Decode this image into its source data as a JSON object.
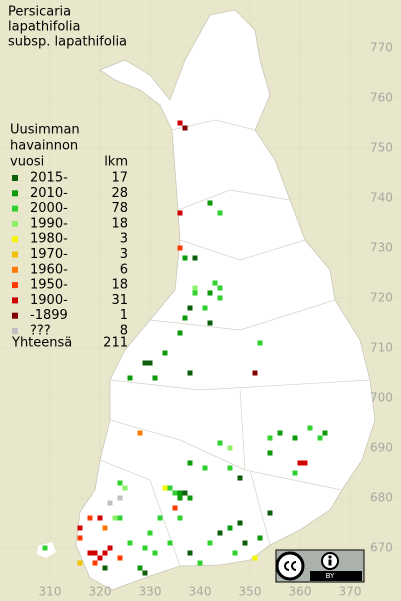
{
  "title": [
    "Persicaria",
    "lapathifolia",
    "subsp. lapathifolia"
  ],
  "legend": {
    "heading": [
      "Uusimman",
      "havainnon",
      "vuosi"
    ],
    "count_heading": "lkm",
    "items": [
      {
        "label": "2015-",
        "count": 17,
        "color": "#0b5e0b"
      },
      {
        "label": "2010-",
        "count": 28,
        "color": "#0a9a0a"
      },
      {
        "label": "2000-",
        "count": 78,
        "color": "#2ed12e"
      },
      {
        "label": "1990-",
        "count": 18,
        "color": "#8cf06a"
      },
      {
        "label": "1980-",
        "count": 3,
        "color": "#f5f500"
      },
      {
        "label": "1970-",
        "count": 3,
        "color": "#f0c000"
      },
      {
        "label": "1960-",
        "count": 6,
        "color": "#ff7a00"
      },
      {
        "label": "1950-",
        "count": 18,
        "color": "#ff3a00"
      },
      {
        "label": "1900-",
        "count": 31,
        "color": "#d00000"
      },
      {
        "label": "-1899",
        "count": 1,
        "color": "#800000"
      },
      {
        "label": "???",
        "count": 8,
        "color": "#c0c0c0"
      }
    ],
    "total_label": "Yhteensä",
    "total": 211
  },
  "x_axis": [
    310,
    320,
    330,
    340,
    350,
    360,
    370
  ],
  "y_axis": [
    670,
    680,
    690,
    700,
    710,
    720,
    730,
    740,
    750,
    760,
    770
  ],
  "license": "BY",
  "records": [
    [
      336,
      755,
      8
    ],
    [
      337,
      754,
      9
    ],
    [
      342,
      739,
      1
    ],
    [
      344,
      737,
      2
    ],
    [
      336,
      737,
      8
    ],
    [
      336,
      730,
      7
    ],
    [
      337,
      728,
      1
    ],
    [
      339,
      728,
      0
    ],
    [
      343,
      723,
      2
    ],
    [
      342,
      721,
      1
    ],
    [
      339,
      722,
      3
    ],
    [
      339,
      721,
      2
    ],
    [
      344,
      722,
      2
    ],
    [
      344,
      720,
      2
    ],
    [
      341,
      718,
      2
    ],
    [
      342,
      715,
      0
    ],
    [
      338,
      718,
      0
    ],
    [
      337,
      716,
      1
    ],
    [
      336,
      713,
      1
    ],
    [
      352,
      711,
      2
    ],
    [
      329,
      707,
      0
    ],
    [
      330,
      707,
      0
    ],
    [
      333,
      709,
      1
    ],
    [
      351,
      705,
      9
    ],
    [
      326,
      704,
      1
    ],
    [
      331,
      704,
      1
    ],
    [
      338,
      705,
      0
    ],
    [
      328,
      693,
      6
    ],
    [
      344,
      691,
      2
    ],
    [
      354,
      692,
      2
    ],
    [
      356,
      693,
      1
    ],
    [
      359,
      692,
      1
    ],
    [
      362,
      694,
      2
    ],
    [
      364,
      692,
      2
    ],
    [
      365,
      693,
      1
    ],
    [
      346,
      690,
      3
    ],
    [
      354,
      689,
      1
    ],
    [
      360,
      687,
      8
    ],
    [
      361,
      687,
      8
    ],
    [
      359,
      685,
      2
    ],
    [
      346,
      686,
      2
    ],
    [
      348,
      684,
      0
    ],
    [
      341,
      686,
      2
    ],
    [
      338,
      687,
      1
    ],
    [
      336,
      681,
      1
    ],
    [
      337,
      681,
      0
    ],
    [
      335,
      681,
      2
    ],
    [
      338,
      680,
      1
    ],
    [
      336,
      680,
      1
    ],
    [
      333,
      682,
      4
    ],
    [
      334,
      682,
      2
    ],
    [
      324,
      683,
      2
    ],
    [
      325,
      682,
      3
    ],
    [
      324,
      680,
      10
    ],
    [
      322,
      679,
      10
    ],
    [
      323,
      676,
      3
    ],
    [
      324,
      676,
      2
    ],
    [
      320,
      676,
      8
    ],
    [
      318,
      676,
      7
    ],
    [
      321,
      674,
      6
    ],
    [
      354,
      677,
      0
    ],
    [
      348,
      675,
      0
    ],
    [
      346,
      674,
      1
    ],
    [
      344,
      673,
      0
    ],
    [
      335,
      678,
      7
    ],
    [
      336,
      676,
      2
    ],
    [
      332,
      676,
      2
    ],
    [
      330,
      673,
      2
    ],
    [
      318,
      669,
      8
    ],
    [
      319,
      669,
      8
    ],
    [
      320,
      668,
      8
    ],
    [
      321,
      669,
      8
    ],
    [
      322,
      670,
      8
    ],
    [
      319,
      667,
      7
    ],
    [
      321,
      666,
      0
    ],
    [
      316,
      667,
      5
    ],
    [
      324,
      668,
      7
    ],
    [
      326,
      671,
      2
    ],
    [
      329,
      670,
      2
    ],
    [
      331,
      669,
      2
    ],
    [
      334,
      671,
      2
    ],
    [
      338,
      669,
      0
    ],
    [
      342,
      671,
      2
    ],
    [
      347,
      669,
      2
    ],
    [
      349,
      671,
      0
    ],
    [
      352,
      672,
      1
    ],
    [
      309,
      670,
      2
    ],
    [
      316,
      674,
      8
    ],
    [
      316,
      672,
      7
    ],
    [
      328,
      666,
      1
    ],
    [
      329,
      665,
      0
    ],
    [
      340,
      667,
      2
    ],
    [
      351,
      668,
      4
    ]
  ]
}
